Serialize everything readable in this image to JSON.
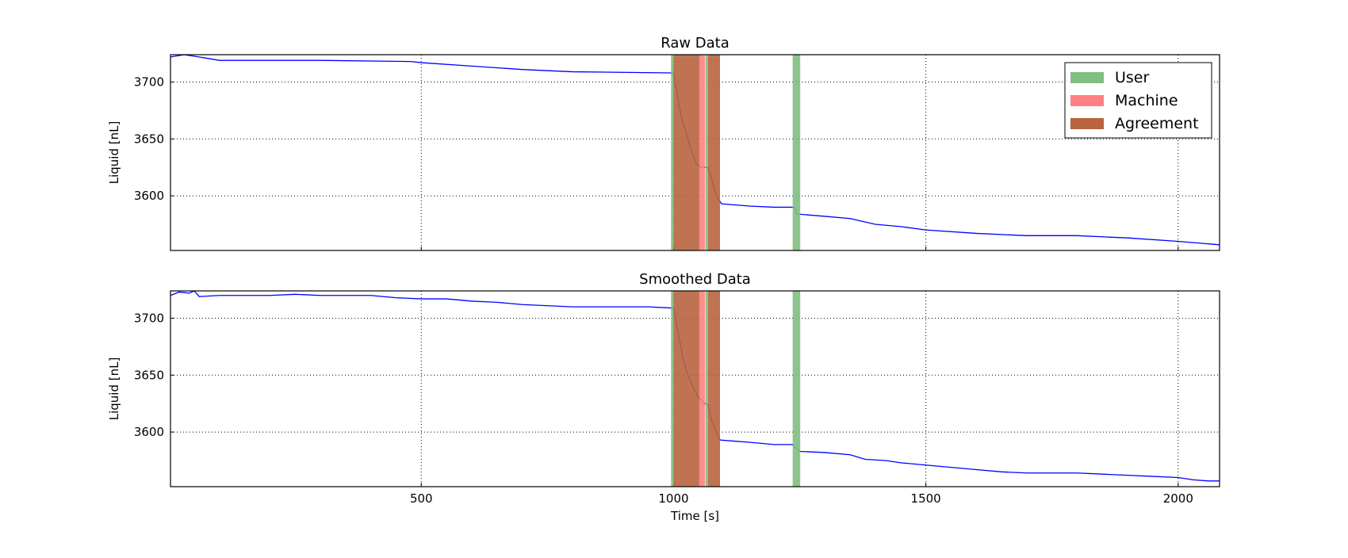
{
  "chart_data": [
    {
      "type": "line",
      "title": "Raw Data",
      "y_label": "Liquid [nL]",
      "xlim": [
        3,
        2082
      ],
      "ylim": [
        3552,
        3724
      ],
      "xticks": [
        500,
        1000,
        1500,
        2000
      ],
      "yticks": [
        3600,
        3650,
        3700
      ],
      "grid": true,
      "legend": "upper right",
      "x": [
        3,
        30,
        60,
        100,
        300,
        480,
        500,
        600,
        700,
        800,
        995,
        1000,
        1005,
        1015,
        1025,
        1035,
        1045,
        1055,
        1068,
        1075,
        1085,
        1095,
        1150,
        1200,
        1240,
        1245,
        1300,
        1350,
        1400,
        1450,
        1500,
        1600,
        1700,
        1800,
        1900,
        2000,
        2082
      ],
      "series": [
        {
          "color": "#0000ff",
          "values": [
            3722,
            3724,
            3722,
            3719,
            3719,
            3718,
            3717,
            3714,
            3711,
            3709,
            3708,
            3708,
            3695,
            3670,
            3655,
            3640,
            3628,
            3625,
            3625,
            3615,
            3600,
            3593,
            3591,
            3590,
            3590,
            3584,
            3582,
            3580,
            3575,
            3573,
            3570,
            3567,
            3565,
            3565,
            3563,
            3560,
            3557
          ]
        }
      ],
      "spans": [
        {
          "name": "User",
          "color": "#7fbf7f",
          "ranges": [
            [
              995,
              1000
            ],
            [
              1063,
              1068
            ],
            [
              1236,
              1251
            ]
          ]
        },
        {
          "name": "Machine",
          "color": "#ff8080",
          "ranges": [
            [
              1051,
              1062
            ]
          ]
        },
        {
          "name": "Agreement",
          "color": "#b8643f",
          "ranges": [
            [
              1000,
              1051
            ],
            [
              1068,
              1092
            ]
          ]
        }
      ]
    },
    {
      "type": "line",
      "title": "Smoothed Data",
      "y_label": "Liquid [nL]",
      "x_label": "Time [s]",
      "xlim": [
        3,
        2082
      ],
      "ylim": [
        3552,
        3724
      ],
      "xticks": [
        500,
        1000,
        1500,
        2000
      ],
      "yticks": [
        3600,
        3650,
        3700
      ],
      "grid": true,
      "x": [
        3,
        20,
        40,
        50,
        60,
        100,
        200,
        250,
        300,
        400,
        450,
        500,
        550,
        600,
        650,
        700,
        800,
        900,
        950,
        995,
        1000,
        1010,
        1020,
        1030,
        1040,
        1050,
        1062,
        1068,
        1075,
        1085,
        1092,
        1120,
        1150,
        1200,
        1236,
        1250,
        1300,
        1350,
        1380,
        1420,
        1450,
        1500,
        1550,
        1600,
        1650,
        1700,
        1800,
        1850,
        1900,
        1950,
        2000,
        2030,
        2060,
        2082
      ],
      "series": [
        {
          "color": "#0000ff",
          "values": [
            3720,
            3723,
            3722,
            3724,
            3719,
            3720,
            3720,
            3721,
            3720,
            3720,
            3718,
            3717,
            3717,
            3715,
            3714,
            3712,
            3710,
            3710,
            3710,
            3709,
            3709,
            3685,
            3662,
            3648,
            3638,
            3630,
            3625,
            3624,
            3610,
            3600,
            3593,
            3592,
            3591,
            3589,
            3589,
            3583,
            3582,
            3580,
            3576,
            3575,
            3573,
            3571,
            3569,
            3567,
            3565,
            3564,
            3564,
            3563,
            3562,
            3561,
            3560,
            3558,
            3557,
            3557
          ]
        }
      ],
      "spans": [
        {
          "color": "#7fbf7f",
          "ranges": [
            [
              995,
              1000
            ],
            [
              1063,
              1068
            ],
            [
              1236,
              1251
            ]
          ]
        },
        {
          "color": "#ff8080",
          "ranges": [
            [
              1051,
              1062
            ]
          ]
        },
        {
          "color": "#b8643f",
          "ranges": [
            [
              1000,
              1051
            ],
            [
              1068,
              1092
            ]
          ]
        }
      ]
    }
  ]
}
